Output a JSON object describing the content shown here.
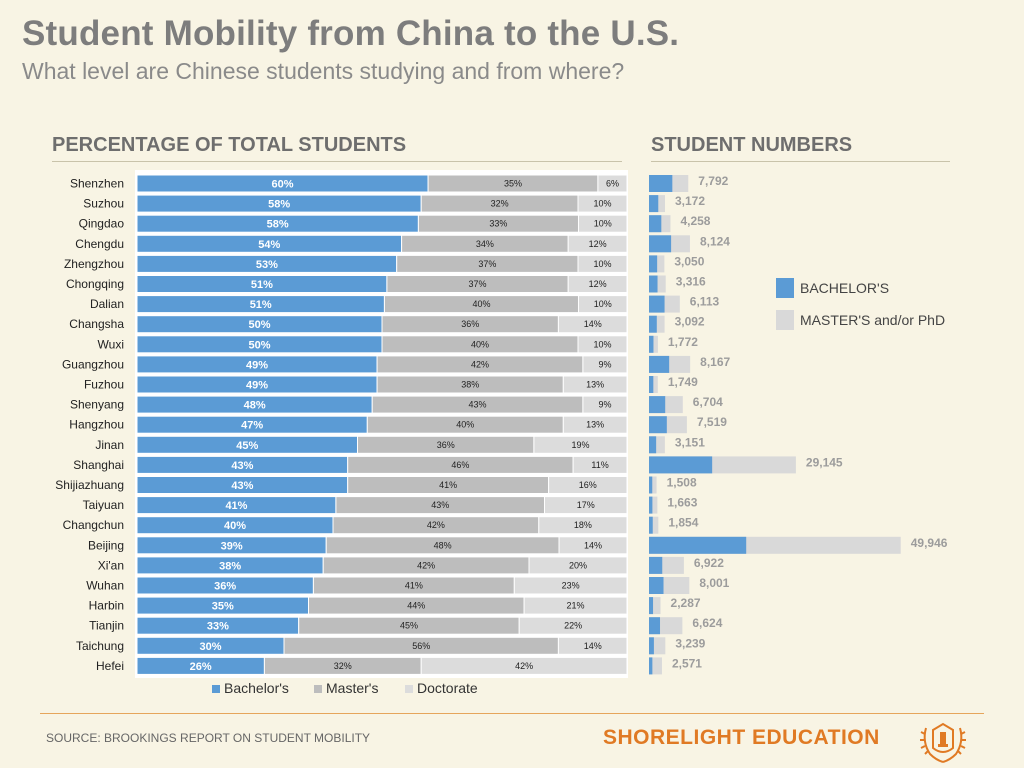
{
  "header": {
    "title": "Student Mobility from China to the U.S.",
    "subtitle": "What level are Chinese students studying and from where?"
  },
  "sections": {
    "left_title": "PERCENTAGE OF TOTAL STUDENTS",
    "right_title": "STUDENT NUMBERS"
  },
  "footer": {
    "source": "SOURCE:  BROOKINGS REPORT ON STUDENT MOBILITY",
    "brand": "SHORELIGHT EDUCATION"
  },
  "colors": {
    "bachelor": "#5b9bd5",
    "master": "#bdbdbd",
    "doctorate": "#dcdcdc",
    "graduate": "#d9d9d9"
  },
  "chart_data": [
    {
      "type": "bar",
      "orientation": "horizontal",
      "stacked": true,
      "title": "PERCENTAGE OF TOTAL STUDENTS",
      "categories": [
        "Shenzhen",
        "Suzhou",
        "Qingdao",
        "Chengdu",
        "Zhengzhou",
        "Chongqing",
        "Dalian",
        "Changsha",
        "Wuxi",
        "Guangzhou",
        "Fuzhou",
        "Shenyang",
        "Hangzhou",
        "Jinan",
        "Shanghai",
        "Shijiazhuang",
        "Taiyuan",
        "Changchun",
        "Beijing",
        "Xi'an",
        "Wuhan",
        "Harbin",
        "Tianjin",
        "Taichung",
        "Hefei"
      ],
      "series": [
        {
          "name": "Bachelor's",
          "values": [
            60,
            58,
            58,
            54,
            53,
            51,
            51,
            50,
            50,
            49,
            49,
            48,
            47,
            45,
            43,
            43,
            41,
            40,
            39,
            38,
            36,
            35,
            33,
            30,
            26
          ]
        },
        {
          "name": "Master's",
          "values": [
            35,
            32,
            33,
            34,
            37,
            37,
            40,
            36,
            40,
            42,
            38,
            43,
            40,
            36,
            46,
            41,
            43,
            42,
            48,
            42,
            41,
            44,
            45,
            56,
            32
          ]
        },
        {
          "name": "Doctorate",
          "values": [
            6,
            10,
            10,
            12,
            10,
            12,
            10,
            14,
            10,
            9,
            13,
            9,
            13,
            19,
            11,
            16,
            17,
            18,
            14,
            20,
            23,
            21,
            22,
            14,
            42
          ]
        }
      ],
      "legend": "bottom",
      "value_suffix": "%"
    },
    {
      "type": "bar",
      "orientation": "horizontal",
      "stacked": true,
      "title": "STUDENT NUMBERS",
      "categories": [
        "Shenzhen",
        "Suzhou",
        "Qingdao",
        "Chengdu",
        "Zhengzhou",
        "Chongqing",
        "Dalian",
        "Changsha",
        "Wuxi",
        "Guangzhou",
        "Fuzhou",
        "Shenyang",
        "Hangzhou",
        "Jinan",
        "Shanghai",
        "Shijiazhuang",
        "Taiyuan",
        "Changchun",
        "Beijing",
        "Xi'an",
        "Wuhan",
        "Harbin",
        "Tianjin",
        "Taichung",
        "Hefei"
      ],
      "totals": [
        7792,
        3172,
        4258,
        8124,
        3050,
        3316,
        6113,
        3092,
        1772,
        8167,
        1749,
        6704,
        7519,
        3151,
        29145,
        1508,
        1663,
        1854,
        49946,
        6922,
        8001,
        2287,
        6624,
        3239,
        2571
      ],
      "total_labels": [
        "7,792",
        "3,172",
        "4,258",
        "8,124",
        "3,050",
        "3,316",
        "6,113",
        "3,092",
        "1,772",
        "8,167",
        "1,749",
        "6,704",
        "7,519",
        "3,151",
        "29,145",
        "1,508",
        "1,663",
        "1,854",
        "49,946",
        "6,922",
        "8,001",
        "2,287",
        "6,624",
        "3,239",
        "2,571"
      ],
      "series_names": [
        "BACHELOR'S",
        "MASTER'S and/or PhD"
      ],
      "legend": "right"
    }
  ]
}
